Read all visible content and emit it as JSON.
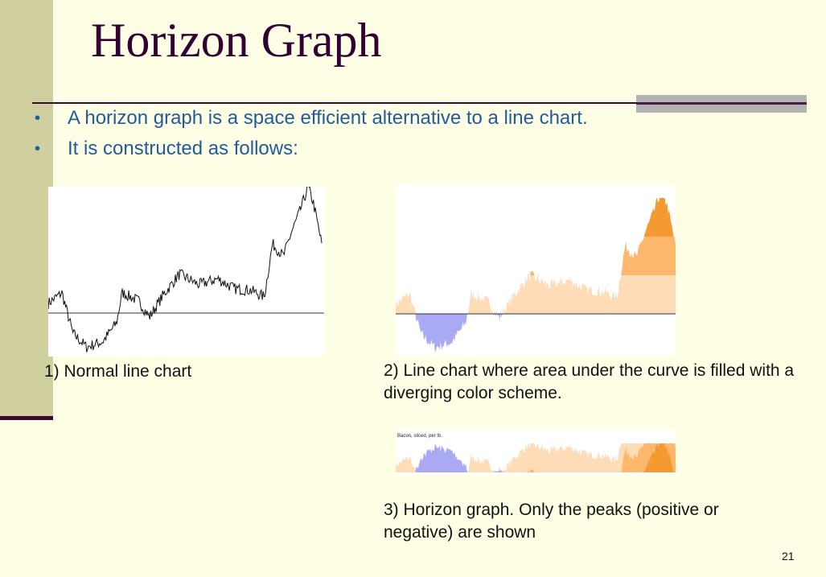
{
  "slide": {
    "title": "Horizon Graph",
    "bullets": [
      "A horizon graph is a space efficient alternative to a line chart.",
      "It is constructed as follows:"
    ],
    "page_number": "21"
  },
  "figures": [
    {
      "caption": "1) Normal line chart"
    },
    {
      "caption": "2) Line chart where area under the curve is filled with a diverging color scheme."
    },
    {
      "caption": "3) Horizon graph. Only the peaks (positive or negative)  are shown",
      "chart_label": "Bacon, sliced, per lb."
    }
  ],
  "colors": {
    "negative": "#aaaaf4",
    "positive_band_1": "#ffdcb8",
    "positive_band_2": "#fdb86e",
    "positive_band_3": "#f59a30",
    "line": "#111111"
  }
}
